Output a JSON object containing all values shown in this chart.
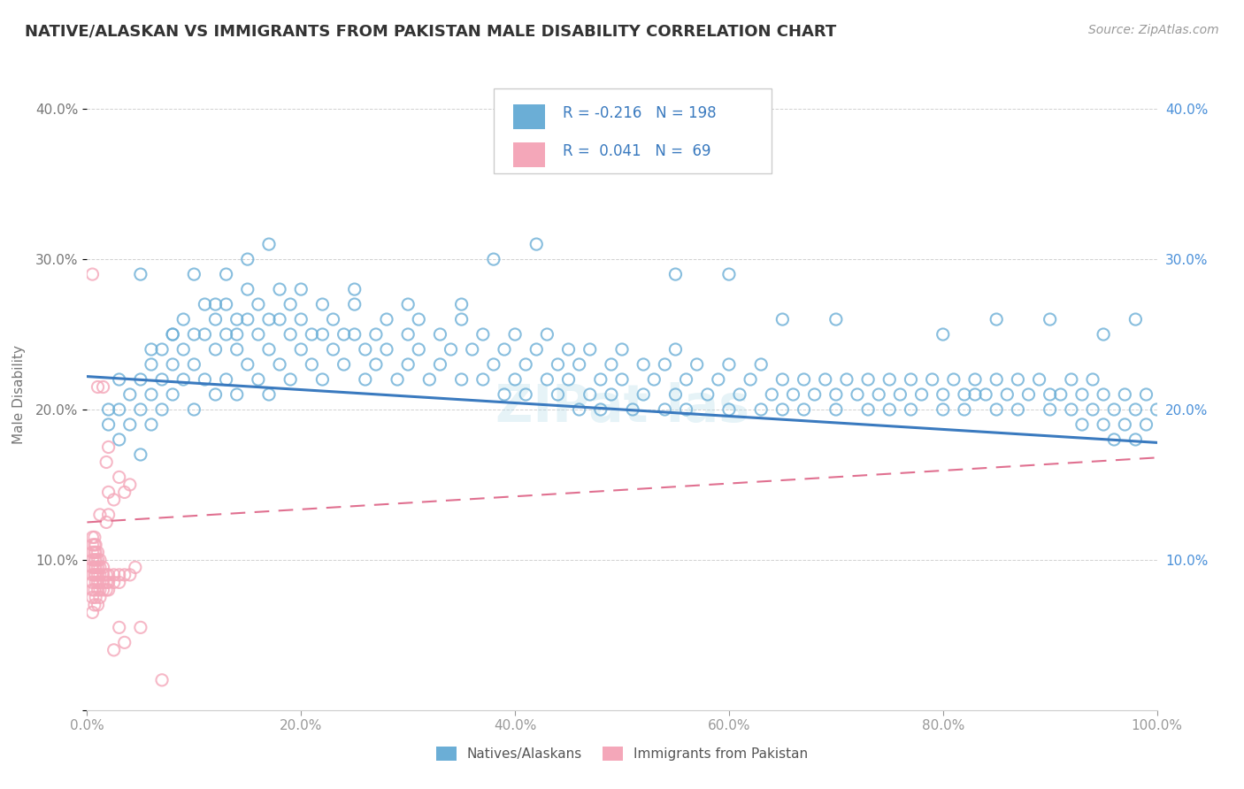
{
  "title": "NATIVE/ALASKAN VS IMMIGRANTS FROM PAKISTAN MALE DISABILITY CORRELATION CHART",
  "source": "Source: ZipAtlas.com",
  "ylabel": "Male Disability",
  "xlim": [
    0,
    1.0
  ],
  "ylim": [
    0,
    0.42
  ],
  "xtick_vals": [
    0.0,
    0.2,
    0.4,
    0.6,
    0.8,
    1.0
  ],
  "ytick_vals": [
    0.0,
    0.1,
    0.2,
    0.3,
    0.4
  ],
  "ytick_labels_left": [
    "",
    "10.0%",
    "20.0%",
    "30.0%",
    "40.0%"
  ],
  "ytick_labels_right": [
    "",
    "10.0%",
    "20.0%",
    "30.0%",
    "40.0%"
  ],
  "xtick_labels": [
    "0.0%",
    "20.0%",
    "40.0%",
    "60.0%",
    "80.0%",
    "100.0%"
  ],
  "legend_entries": [
    "Natives/Alaskans",
    "Immigrants from Pakistan"
  ],
  "r_native": -0.216,
  "n_native": 198,
  "r_pakistan": 0.041,
  "n_pakistan": 69,
  "native_color": "#6baed6",
  "pakistan_color": "#f4a7b9",
  "trendline_native_color": "#3a7abf",
  "trendline_pakistan_color": "#e07090",
  "background_color": "#ffffff",
  "native_trend_start": 0.222,
  "native_trend_end": 0.178,
  "pak_trend_start": 0.125,
  "pak_trend_end": 0.168,
  "native_scatter": [
    [
      0.02,
      0.2
    ],
    [
      0.02,
      0.19
    ],
    [
      0.03,
      0.22
    ],
    [
      0.03,
      0.2
    ],
    [
      0.03,
      0.18
    ],
    [
      0.04,
      0.21
    ],
    [
      0.04,
      0.19
    ],
    [
      0.05,
      0.22
    ],
    [
      0.05,
      0.2
    ],
    [
      0.05,
      0.17
    ],
    [
      0.06,
      0.23
    ],
    [
      0.06,
      0.21
    ],
    [
      0.06,
      0.19
    ],
    [
      0.07,
      0.24
    ],
    [
      0.07,
      0.22
    ],
    [
      0.07,
      0.2
    ],
    [
      0.08,
      0.25
    ],
    [
      0.08,
      0.23
    ],
    [
      0.08,
      0.21
    ],
    [
      0.09,
      0.26
    ],
    [
      0.09,
      0.24
    ],
    [
      0.09,
      0.22
    ],
    [
      0.1,
      0.25
    ],
    [
      0.1,
      0.23
    ],
    [
      0.1,
      0.2
    ],
    [
      0.11,
      0.27
    ],
    [
      0.11,
      0.25
    ],
    [
      0.11,
      0.22
    ],
    [
      0.12,
      0.26
    ],
    [
      0.12,
      0.24
    ],
    [
      0.12,
      0.21
    ],
    [
      0.13,
      0.27
    ],
    [
      0.13,
      0.25
    ],
    [
      0.13,
      0.22
    ],
    [
      0.14,
      0.26
    ],
    [
      0.14,
      0.24
    ],
    [
      0.14,
      0.21
    ],
    [
      0.15,
      0.28
    ],
    [
      0.15,
      0.26
    ],
    [
      0.15,
      0.23
    ],
    [
      0.16,
      0.27
    ],
    [
      0.16,
      0.25
    ],
    [
      0.16,
      0.22
    ],
    [
      0.17,
      0.26
    ],
    [
      0.17,
      0.24
    ],
    [
      0.17,
      0.21
    ],
    [
      0.18,
      0.28
    ],
    [
      0.18,
      0.26
    ],
    [
      0.18,
      0.23
    ],
    [
      0.19,
      0.27
    ],
    [
      0.19,
      0.25
    ],
    [
      0.19,
      0.22
    ],
    [
      0.2,
      0.26
    ],
    [
      0.2,
      0.24
    ],
    [
      0.21,
      0.25
    ],
    [
      0.21,
      0.23
    ],
    [
      0.22,
      0.27
    ],
    [
      0.22,
      0.25
    ],
    [
      0.22,
      0.22
    ],
    [
      0.23,
      0.26
    ],
    [
      0.23,
      0.24
    ],
    [
      0.24,
      0.25
    ],
    [
      0.24,
      0.23
    ],
    [
      0.25,
      0.27
    ],
    [
      0.25,
      0.25
    ],
    [
      0.26,
      0.24
    ],
    [
      0.26,
      0.22
    ],
    [
      0.27,
      0.25
    ],
    [
      0.27,
      0.23
    ],
    [
      0.28,
      0.26
    ],
    [
      0.28,
      0.24
    ],
    [
      0.29,
      0.22
    ],
    [
      0.3,
      0.25
    ],
    [
      0.3,
      0.23
    ],
    [
      0.31,
      0.26
    ],
    [
      0.31,
      0.24
    ],
    [
      0.32,
      0.22
    ],
    [
      0.33,
      0.25
    ],
    [
      0.33,
      0.23
    ],
    [
      0.34,
      0.24
    ],
    [
      0.35,
      0.22
    ],
    [
      0.35,
      0.26
    ],
    [
      0.36,
      0.24
    ],
    [
      0.37,
      0.22
    ],
    [
      0.37,
      0.25
    ],
    [
      0.38,
      0.23
    ],
    [
      0.39,
      0.21
    ],
    [
      0.39,
      0.24
    ],
    [
      0.4,
      0.22
    ],
    [
      0.4,
      0.25
    ],
    [
      0.41,
      0.23
    ],
    [
      0.41,
      0.21
    ],
    [
      0.42,
      0.24
    ],
    [
      0.43,
      0.22
    ],
    [
      0.43,
      0.25
    ],
    [
      0.44,
      0.23
    ],
    [
      0.44,
      0.21
    ],
    [
      0.45,
      0.24
    ],
    [
      0.45,
      0.22
    ],
    [
      0.46,
      0.2
    ],
    [
      0.46,
      0.23
    ],
    [
      0.47,
      0.21
    ],
    [
      0.47,
      0.24
    ],
    [
      0.48,
      0.22
    ],
    [
      0.48,
      0.2
    ],
    [
      0.49,
      0.23
    ],
    [
      0.49,
      0.21
    ],
    [
      0.5,
      0.24
    ],
    [
      0.5,
      0.22
    ],
    [
      0.51,
      0.2
    ],
    [
      0.52,
      0.23
    ],
    [
      0.52,
      0.21
    ],
    [
      0.53,
      0.22
    ],
    [
      0.54,
      0.2
    ],
    [
      0.54,
      0.23
    ],
    [
      0.55,
      0.21
    ],
    [
      0.55,
      0.24
    ],
    [
      0.56,
      0.22
    ],
    [
      0.56,
      0.2
    ],
    [
      0.57,
      0.23
    ],
    [
      0.58,
      0.21
    ],
    [
      0.59,
      0.22
    ],
    [
      0.6,
      0.2
    ],
    [
      0.6,
      0.23
    ],
    [
      0.61,
      0.21
    ],
    [
      0.62,
      0.22
    ],
    [
      0.63,
      0.2
    ],
    [
      0.63,
      0.23
    ],
    [
      0.64,
      0.21
    ],
    [
      0.65,
      0.22
    ],
    [
      0.65,
      0.2
    ],
    [
      0.66,
      0.21
    ],
    [
      0.67,
      0.22
    ],
    [
      0.67,
      0.2
    ],
    [
      0.68,
      0.21
    ],
    [
      0.69,
      0.22
    ],
    [
      0.7,
      0.2
    ],
    [
      0.7,
      0.21
    ],
    [
      0.71,
      0.22
    ],
    [
      0.72,
      0.21
    ],
    [
      0.73,
      0.2
    ],
    [
      0.73,
      0.22
    ],
    [
      0.74,
      0.21
    ],
    [
      0.75,
      0.22
    ],
    [
      0.75,
      0.2
    ],
    [
      0.76,
      0.21
    ],
    [
      0.77,
      0.22
    ],
    [
      0.77,
      0.2
    ],
    [
      0.78,
      0.21
    ],
    [
      0.79,
      0.22
    ],
    [
      0.8,
      0.21
    ],
    [
      0.8,
      0.2
    ],
    [
      0.81,
      0.22
    ],
    [
      0.82,
      0.21
    ],
    [
      0.82,
      0.2
    ],
    [
      0.83,
      0.21
    ],
    [
      0.83,
      0.22
    ],
    [
      0.84,
      0.21
    ],
    [
      0.85,
      0.22
    ],
    [
      0.85,
      0.2
    ],
    [
      0.86,
      0.21
    ],
    [
      0.87,
      0.22
    ],
    [
      0.87,
      0.2
    ],
    [
      0.88,
      0.21
    ],
    [
      0.89,
      0.22
    ],
    [
      0.9,
      0.21
    ],
    [
      0.9,
      0.2
    ],
    [
      0.91,
      0.21
    ],
    [
      0.92,
      0.22
    ],
    [
      0.92,
      0.2
    ],
    [
      0.93,
      0.21
    ],
    [
      0.93,
      0.19
    ],
    [
      0.94,
      0.2
    ],
    [
      0.94,
      0.22
    ],
    [
      0.95,
      0.21
    ],
    [
      0.95,
      0.19
    ],
    [
      0.96,
      0.2
    ],
    [
      0.96,
      0.18
    ],
    [
      0.97,
      0.19
    ],
    [
      0.97,
      0.21
    ],
    [
      0.98,
      0.2
    ],
    [
      0.98,
      0.18
    ],
    [
      0.99,
      0.19
    ],
    [
      0.99,
      0.21
    ],
    [
      1.0,
      0.2
    ],
    [
      0.05,
      0.29
    ],
    [
      0.1,
      0.29
    ],
    [
      0.13,
      0.29
    ],
    [
      0.15,
      0.3
    ],
    [
      0.17,
      0.31
    ],
    [
      0.2,
      0.28
    ],
    [
      0.25,
      0.28
    ],
    [
      0.3,
      0.27
    ],
    [
      0.35,
      0.27
    ],
    [
      0.38,
      0.3
    ],
    [
      0.42,
      0.31
    ],
    [
      0.55,
      0.29
    ],
    [
      0.6,
      0.29
    ],
    [
      0.65,
      0.26
    ],
    [
      0.7,
      0.26
    ],
    [
      0.8,
      0.25
    ],
    [
      0.85,
      0.26
    ],
    [
      0.9,
      0.26
    ],
    [
      0.95,
      0.25
    ],
    [
      0.98,
      0.26
    ],
    [
      0.06,
      0.24
    ],
    [
      0.08,
      0.25
    ],
    [
      0.12,
      0.27
    ],
    [
      0.14,
      0.25
    ]
  ],
  "pakistan_scatter": [
    [
      0.005,
      0.065
    ],
    [
      0.005,
      0.075
    ],
    [
      0.005,
      0.08
    ],
    [
      0.005,
      0.085
    ],
    [
      0.005,
      0.09
    ],
    [
      0.005,
      0.095
    ],
    [
      0.005,
      0.1
    ],
    [
      0.005,
      0.105
    ],
    [
      0.005,
      0.11
    ],
    [
      0.005,
      0.115
    ],
    [
      0.007,
      0.07
    ],
    [
      0.007,
      0.08
    ],
    [
      0.007,
      0.09
    ],
    [
      0.007,
      0.095
    ],
    [
      0.007,
      0.1
    ],
    [
      0.007,
      0.105
    ],
    [
      0.007,
      0.11
    ],
    [
      0.007,
      0.115
    ],
    [
      0.008,
      0.075
    ],
    [
      0.008,
      0.085
    ],
    [
      0.008,
      0.09
    ],
    [
      0.008,
      0.095
    ],
    [
      0.008,
      0.1
    ],
    [
      0.008,
      0.105
    ],
    [
      0.008,
      0.11
    ],
    [
      0.01,
      0.07
    ],
    [
      0.01,
      0.08
    ],
    [
      0.01,
      0.085
    ],
    [
      0.01,
      0.09
    ],
    [
      0.01,
      0.095
    ],
    [
      0.01,
      0.1
    ],
    [
      0.01,
      0.105
    ],
    [
      0.012,
      0.075
    ],
    [
      0.012,
      0.08
    ],
    [
      0.012,
      0.085
    ],
    [
      0.012,
      0.09
    ],
    [
      0.012,
      0.095
    ],
    [
      0.012,
      0.1
    ],
    [
      0.015,
      0.08
    ],
    [
      0.015,
      0.085
    ],
    [
      0.015,
      0.09
    ],
    [
      0.015,
      0.095
    ],
    [
      0.018,
      0.08
    ],
    [
      0.018,
      0.085
    ],
    [
      0.018,
      0.09
    ],
    [
      0.02,
      0.08
    ],
    [
      0.02,
      0.085
    ],
    [
      0.02,
      0.09
    ],
    [
      0.025,
      0.085
    ],
    [
      0.025,
      0.09
    ],
    [
      0.03,
      0.085
    ],
    [
      0.03,
      0.09
    ],
    [
      0.035,
      0.09
    ],
    [
      0.04,
      0.09
    ],
    [
      0.045,
      0.095
    ],
    [
      0.012,
      0.13
    ],
    [
      0.018,
      0.125
    ],
    [
      0.02,
      0.13
    ],
    [
      0.025,
      0.14
    ],
    [
      0.03,
      0.155
    ],
    [
      0.035,
      0.145
    ],
    [
      0.04,
      0.15
    ],
    [
      0.018,
      0.165
    ],
    [
      0.02,
      0.145
    ],
    [
      0.005,
      0.29
    ],
    [
      0.01,
      0.215
    ],
    [
      0.015,
      0.215
    ],
    [
      0.02,
      0.175
    ],
    [
      0.025,
      0.04
    ],
    [
      0.03,
      0.055
    ],
    [
      0.035,
      0.045
    ],
    [
      0.05,
      0.055
    ],
    [
      0.07,
      0.02
    ]
  ]
}
